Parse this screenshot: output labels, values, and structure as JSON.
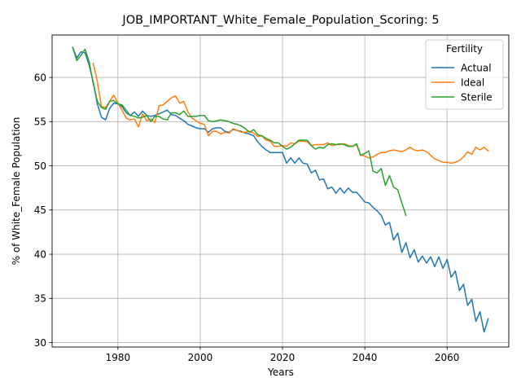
{
  "chart_data": {
    "type": "line",
    "title": "JOB_IMPORTANT_White_Female_Population_Scoring: 5",
    "xlabel": "Years",
    "ylabel": "% of White_Female Population",
    "xlim": [
      1964,
      2075
    ],
    "ylim": [
      29.5,
      64.8
    ],
    "xticks": [
      1980,
      2000,
      2020,
      2040,
      2060
    ],
    "yticks": [
      30,
      35,
      40,
      45,
      50,
      55,
      60
    ],
    "grid": true,
    "legend": {
      "title": "Fertility",
      "placement": "top-right"
    },
    "colors": {
      "Actual": "#1f77b4",
      "Ideal": "#ff7f0e",
      "Sterile": "#2ca02c"
    },
    "series": [
      {
        "name": "Actual",
        "x": [
          1969,
          1970,
          1971,
          1972,
          1973,
          1974,
          1975,
          1976,
          1977,
          1978,
          1979,
          1980,
          1981,
          1982,
          1983,
          1984,
          1985,
          1986,
          1987,
          1988,
          1989,
          1990,
          1991,
          1992,
          1993,
          1994,
          1995,
          1996,
          1997,
          1998,
          1999,
          2000,
          2001,
          2002,
          2003,
          2004,
          2005,
          2006,
          2007,
          2008,
          2009,
          2010,
          2011,
          2012,
          2013,
          2014,
          2015,
          2016,
          2017,
          2018,
          2019,
          2020,
          2021,
          2022,
          2023,
          2024,
          2025,
          2026,
          2027,
          2028,
          2029,
          2030,
          2031,
          2032,
          2033,
          2034,
          2035,
          2036,
          2037,
          2038,
          2039,
          2040,
          2041,
          2042,
          2043,
          2044,
          2045,
          2046,
          2047,
          2048,
          2049,
          2050,
          2051,
          2052,
          2053,
          2054,
          2055,
          2056,
          2057,
          2058,
          2059,
          2060,
          2061,
          2062,
          2063,
          2064,
          2065,
          2066,
          2067,
          2068,
          2069,
          2070
        ],
        "values": [
          63.4,
          62.2,
          62.9,
          62.8,
          61.4,
          59.5,
          57.0,
          55.5,
          55.2,
          56.5,
          57.1,
          57.0,
          56.7,
          56.0,
          55.7,
          56.1,
          55.6,
          56.2,
          55.7,
          55.6,
          55.7,
          55.9,
          56.1,
          56.3,
          55.8,
          55.7,
          55.4,
          55.1,
          54.7,
          54.5,
          54.3,
          54.2,
          54.2,
          53.8,
          54.2,
          54.3,
          54.3,
          53.9,
          53.8,
          54.1,
          54.0,
          53.9,
          53.7,
          53.6,
          53.4,
          52.7,
          52.2,
          51.8,
          51.5,
          51.5,
          51.5,
          51.5,
          50.3,
          50.9,
          50.3,
          50.9,
          50.3,
          50.2,
          49.2,
          49.5,
          48.4,
          48.5,
          47.4,
          47.6,
          46.9,
          47.5,
          46.9,
          47.5,
          47.0,
          47.0,
          46.5,
          45.9,
          45.8,
          45.3,
          44.9,
          44.4,
          43.3,
          43.6,
          41.6,
          42.4,
          40.2,
          41.3,
          39.6,
          40.5,
          39.1,
          39.8,
          39.0,
          39.7,
          38.6,
          39.7,
          38.4,
          39.4,
          37.4,
          38.1,
          35.9,
          36.6,
          34.2,
          34.9,
          32.4,
          33.5,
          31.2,
          32.7
        ]
      },
      {
        "name": "Ideal",
        "x": [
          1974,
          1975,
          1976,
          1977,
          1978,
          1979,
          1980,
          1981,
          1982,
          1983,
          1984,
          1985,
          1986,
          1987,
          1988,
          1989,
          1990,
          1991,
          1992,
          1993,
          1994,
          1995,
          1996,
          1997,
          1998,
          1999,
          2000,
          2001,
          2002,
          2003,
          2004,
          2005,
          2006,
          2007,
          2008,
          2009,
          2010,
          2011,
          2012,
          2013,
          2014,
          2015,
          2016,
          2017,
          2018,
          2019,
          2020,
          2021,
          2022,
          2023,
          2024,
          2025,
          2026,
          2027,
          2028,
          2029,
          2030,
          2031,
          2032,
          2033,
          2034,
          2035,
          2036,
          2037,
          2038,
          2039,
          2040,
          2041,
          2042,
          2043,
          2044,
          2045,
          2046,
          2047,
          2048,
          2049,
          2050,
          2051,
          2052,
          2053,
          2054,
          2055,
          2056,
          2057,
          2058,
          2059,
          2060,
          2061,
          2062,
          2063,
          2064,
          2065,
          2066,
          2067,
          2068,
          2069,
          2070
        ],
        "values": [
          61.6,
          59.5,
          56.7,
          56.6,
          57.3,
          58.0,
          57.1,
          56.3,
          55.4,
          55.2,
          55.3,
          54.4,
          55.9,
          55.1,
          55.3,
          54.9,
          56.8,
          56.9,
          57.3,
          57.7,
          57.9,
          57.1,
          57.3,
          56.1,
          55.4,
          55.1,
          54.8,
          54.7,
          53.4,
          53.9,
          53.9,
          53.6,
          53.8,
          53.7,
          54.2,
          54.0,
          53.8,
          53.8,
          53.9,
          53.7,
          53.3,
          53.4,
          52.9,
          52.8,
          52.2,
          52.2,
          52.3,
          52.2,
          52.6,
          52.5,
          52.8,
          52.8,
          52.7,
          52.3,
          52.4,
          52.4,
          52.4,
          52.6,
          52.3,
          52.4,
          52.4,
          52.5,
          52.3,
          52.2,
          52.4,
          51.2,
          51.1,
          50.9,
          51.0,
          51.3,
          51.5,
          51.5,
          51.7,
          51.8,
          51.7,
          51.6,
          51.8,
          52.1,
          51.8,
          51.7,
          51.8,
          51.6,
          51.2,
          50.8,
          50.6,
          50.4,
          50.4,
          50.3,
          50.4,
          50.6,
          51.0,
          51.6,
          51.3,
          52.1,
          51.8,
          52.1,
          51.7
        ]
      },
      {
        "name": "Sterile",
        "x": [
          1969,
          1970,
          1971,
          1972,
          1973,
          1974,
          1975,
          1976,
          1977,
          1978,
          1979,
          1980,
          1981,
          1982,
          1983,
          1984,
          1985,
          1986,
          1987,
          1988,
          1989,
          1990,
          1991,
          1992,
          1993,
          1994,
          1995,
          1996,
          1997,
          1998,
          1999,
          2000,
          2001,
          2002,
          2003,
          2004,
          2005,
          2006,
          2007,
          2008,
          2009,
          2010,
          2011,
          2012,
          2013,
          2014,
          2015,
          2016,
          2017,
          2018,
          2019,
          2020,
          2021,
          2022,
          2023,
          2024,
          2025,
          2026,
          2027,
          2028,
          2029,
          2030,
          2031,
          2032,
          2033,
          2034,
          2035,
          2036,
          2037,
          2038,
          2039,
          2040,
          2041,
          2042,
          2043,
          2044,
          2045,
          2046,
          2047,
          2048,
          2049,
          2050
        ],
        "values": [
          63.4,
          61.9,
          62.5,
          63.2,
          61.8,
          59.3,
          57.3,
          56.6,
          56.4,
          57.3,
          57.4,
          57.0,
          56.9,
          56.3,
          55.7,
          55.6,
          55.4,
          55.5,
          55.7,
          55.0,
          55.6,
          55.6,
          55.3,
          55.2,
          56.0,
          56.0,
          55.8,
          56.2,
          55.6,
          55.6,
          55.6,
          55.7,
          55.7,
          55.1,
          55.0,
          55.1,
          55.2,
          55.1,
          55.0,
          54.8,
          54.7,
          54.5,
          54.2,
          53.8,
          54.1,
          53.5,
          53.4,
          53.1,
          52.9,
          52.6,
          52.6,
          52.2,
          51.9,
          52.1,
          52.5,
          52.9,
          52.9,
          52.9,
          52.3,
          51.9,
          52.1,
          52.0,
          52.4,
          52.5,
          52.4,
          52.5,
          52.4,
          52.2,
          52.2,
          52.5,
          51.2,
          51.4,
          51.7,
          49.4,
          49.2,
          49.7,
          47.8,
          48.9,
          47.6,
          47.3,
          45.8,
          44.4
        ]
      }
    ]
  }
}
